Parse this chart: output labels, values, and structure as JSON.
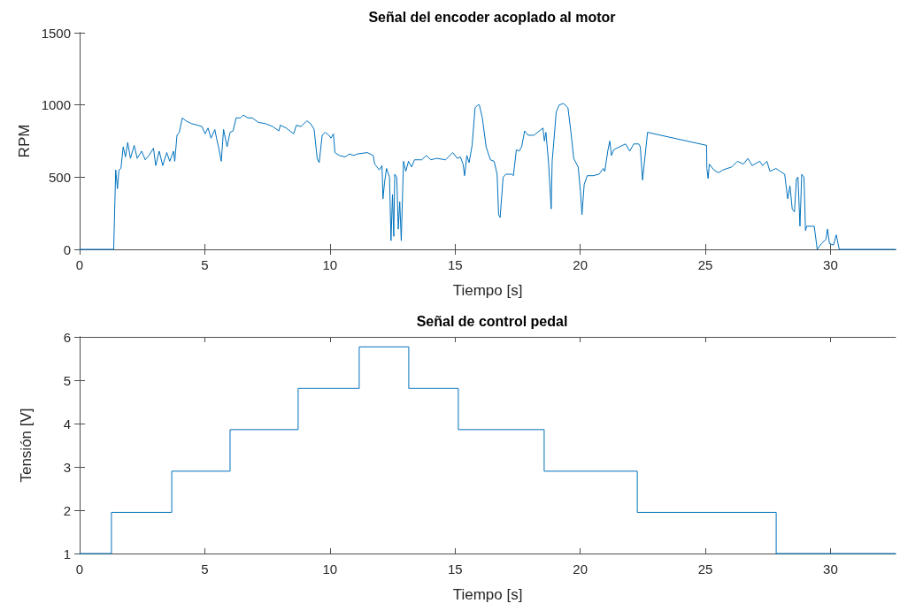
{
  "chart_data": [
    {
      "type": "line",
      "title": "Señal del encoder acoplado al motor",
      "xlabel": "Tiempo [s]",
      "ylabel": "RPM",
      "xlim": [
        0,
        32.6
      ],
      "xticks": [
        0,
        5,
        10,
        15,
        20,
        25,
        30
      ],
      "ylim": [
        0,
        1500
      ],
      "yticks": [
        0,
        500,
        1000,
        1500
      ],
      "marker": "none",
      "line_style": "solid",
      "series": [
        {
          "color": "#0072bd",
          "x": [
            0,
            1.36,
            1.44,
            1.51,
            1.57,
            1.65,
            1.74,
            1.83,
            1.92,
            2.03,
            2.18,
            2.3,
            2.48,
            2.62,
            2.77,
            2.95,
            3.04,
            3.18,
            3.32,
            3.48,
            3.6,
            3.75,
            3.8,
            3.89,
            3.98,
            4.1,
            4.24,
            4.48,
            4.71,
            4.89,
            5.01,
            5.13,
            5.25,
            5.4,
            5.48,
            5.56,
            5.66,
            5.75,
            5.89,
            6.01,
            6.13,
            6.25,
            6.42,
            6.54,
            6.72,
            6.9,
            7.13,
            7.43,
            7.72,
            7.96,
            8.02,
            8.25,
            8.55,
            8.66,
            8.84,
            9.08,
            9.23,
            9.37,
            9.49,
            9.57,
            9.69,
            9.81,
            9.96,
            10.04,
            10.14,
            10.2,
            10.37,
            10.61,
            10.78,
            10.96,
            11.08,
            11.49,
            11.73,
            11.79,
            11.97,
            12.08,
            12.12,
            12.18,
            12.26,
            12.38,
            12.44,
            12.5,
            12.55,
            12.59,
            12.67,
            12.73,
            12.79,
            12.85,
            12.94,
            13.03,
            13.14,
            13.26,
            13.38,
            13.67,
            13.85,
            14.03,
            14.26,
            14.62,
            14.91,
            15.09,
            15.21,
            15.32,
            15.38,
            15.47,
            15.56,
            15.68,
            15.8,
            15.91,
            15.97,
            16.09,
            16.24,
            16.41,
            16.56,
            16.68,
            16.74,
            16.8,
            16.92,
            17.03,
            17.27,
            17.33,
            17.45,
            17.56,
            17.66,
            17.78,
            17.92,
            18.15,
            18.51,
            18.57,
            18.63,
            18.74,
            18.84,
            18.88,
            18.98,
            19.04,
            19.16,
            19.33,
            19.51,
            19.63,
            19.74,
            19.92,
            20.01,
            20.07,
            20.16,
            20.28,
            20.51,
            20.75,
            20.92,
            20.98,
            21.1,
            21.18,
            21.25,
            21.34,
            21.57,
            21.81,
            21.98,
            22.14,
            22.34,
            22.4,
            22.49,
            22.69,
            25.05,
            25.06,
            25.11,
            25.16,
            25.34,
            25.52,
            25.7,
            26.05,
            26.28,
            26.52,
            26.7,
            26.87,
            27.17,
            27.29,
            27.46,
            27.58,
            27.82,
            27.99,
            28.17,
            28.29,
            28.38,
            28.47,
            28.56,
            28.64,
            28.7,
            28.78,
            28.85,
            28.94,
            29.0,
            29.05,
            29.35,
            29.47,
            29.64,
            29.82,
            29.88,
            29.96,
            30.12,
            30.23,
            30.35,
            32.6
          ],
          "values": [
            0,
            0,
            550,
            420,
            550,
            560,
            710,
            640,
            740,
            630,
            720,
            630,
            680,
            620,
            650,
            700,
            580,
            680,
            580,
            670,
            610,
            680,
            610,
            790,
            810,
            910,
            890,
            870,
            860,
            850,
            800,
            840,
            770,
            830,
            760,
            700,
            610,
            830,
            710,
            810,
            820,
            910,
            910,
            930,
            910,
            910,
            880,
            870,
            850,
            820,
            860,
            840,
            800,
            860,
            850,
            890,
            870,
            830,
            630,
            600,
            790,
            810,
            790,
            770,
            800,
            670,
            650,
            640,
            660,
            650,
            660,
            670,
            650,
            590,
            550,
            580,
            350,
            460,
            560,
            500,
            60,
            380,
            90,
            520,
            500,
            140,
            330,
            60,
            610,
            540,
            610,
            570,
            620,
            620,
            650,
            620,
            630,
            620,
            670,
            630,
            640,
            590,
            510,
            650,
            600,
            720,
            980,
            1000,
            1000,
            910,
            710,
            620,
            610,
            520,
            240,
            220,
            500,
            520,
            520,
            510,
            690,
            680,
            710,
            820,
            790,
            790,
            840,
            750,
            810,
            590,
            280,
            610,
            820,
            950,
            1000,
            1010,
            980,
            810,
            630,
            570,
            400,
            240,
            450,
            510,
            510,
            520,
            560,
            540,
            680,
            750,
            650,
            690,
            710,
            730,
            680,
            730,
            730,
            710,
            480,
            810,
            720,
            560,
            490,
            590,
            550,
            530,
            550,
            570,
            610,
            590,
            630,
            580,
            610,
            580,
            610,
            540,
            560,
            540,
            520,
            350,
            440,
            280,
            260,
            490,
            500,
            160,
            520,
            500,
            130,
            160,
            160,
            0,
            40,
            70,
            140,
            40,
            30,
            100,
            0,
            0
          ]
        }
      ]
    },
    {
      "type": "step",
      "title": "Señal de control pedal",
      "xlabel": "Tiempo [s]",
      "ylabel": "Tensión [V]",
      "xlim": [
        0,
        32.6
      ],
      "xticks": [
        0,
        5,
        10,
        15,
        20,
        25,
        30
      ],
      "ylim": [
        1,
        6
      ],
      "yticks": [
        1,
        2,
        3,
        4,
        5,
        6
      ],
      "marker": "none",
      "line_style": "solid",
      "series": [
        {
          "color": "#0072bd",
          "x": [
            0,
            1.27,
            3.68,
            6.01,
            8.73,
            11.17,
            13.15,
            15.13,
            18.56,
            22.28,
            27.83,
            32.6
          ],
          "values": [
            1,
            1.95,
            2.9,
            3.86,
            4.81,
            5.77,
            4.81,
            3.86,
            2.9,
            1.95,
            1,
            1
          ]
        }
      ]
    }
  ]
}
